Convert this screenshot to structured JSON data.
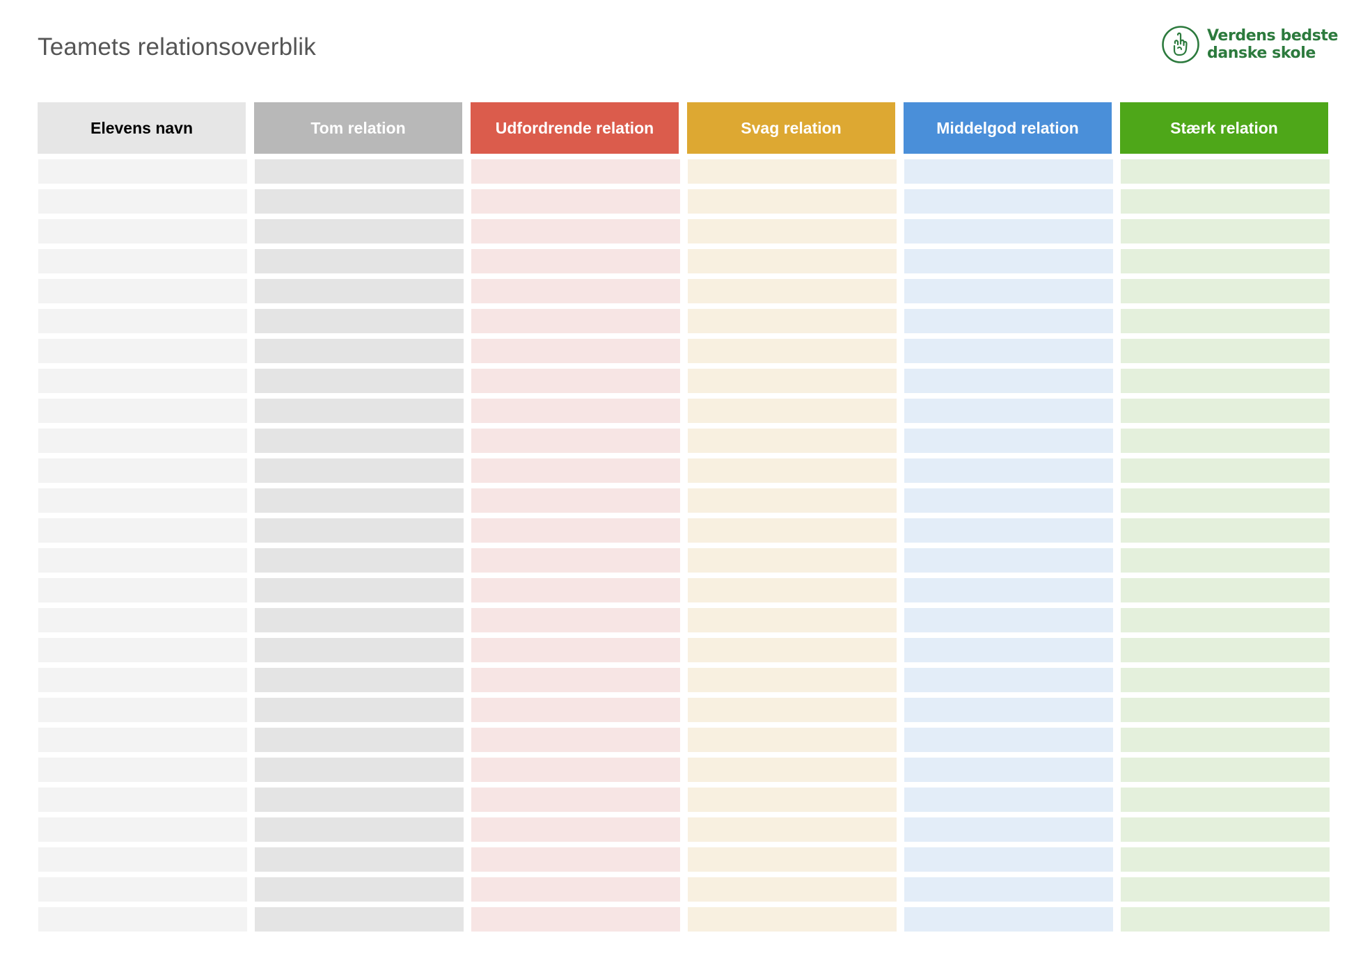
{
  "page": {
    "title": "Teamets relationsoverblik"
  },
  "logo": {
    "line1": "Verdens bedste",
    "line2": "danske skole",
    "icon": "pointing-hand-icon",
    "color": "#2c7a3d"
  },
  "table": {
    "row_count": 26,
    "columns": [
      {
        "key": "name",
        "label": "Elevens navn",
        "header_bg": "#e6e6e6",
        "header_fg": "#000000",
        "cell_bg": "#f3f3f3"
      },
      {
        "key": "empty",
        "label": "Tom relation",
        "header_bg": "#b8b8b8",
        "header_fg": "#ffffff",
        "cell_bg": "#e4e4e4"
      },
      {
        "key": "challenging",
        "label": "Udfordrende relation",
        "header_bg": "#db5c4c",
        "header_fg": "#ffffff",
        "cell_bg": "#f7e5e4"
      },
      {
        "key": "weak",
        "label": "Svag relation",
        "header_bg": "#dda832",
        "header_fg": "#ffffff",
        "cell_bg": "#f8f0e0"
      },
      {
        "key": "medium",
        "label": "Middelgod relation",
        "header_bg": "#4a8fd9",
        "header_fg": "#ffffff",
        "cell_bg": "#e3edf8"
      },
      {
        "key": "strong",
        "label": "Stærk relation",
        "header_bg": "#4ea719",
        "header_fg": "#ffffff",
        "cell_bg": "#e4f0dc"
      }
    ]
  }
}
